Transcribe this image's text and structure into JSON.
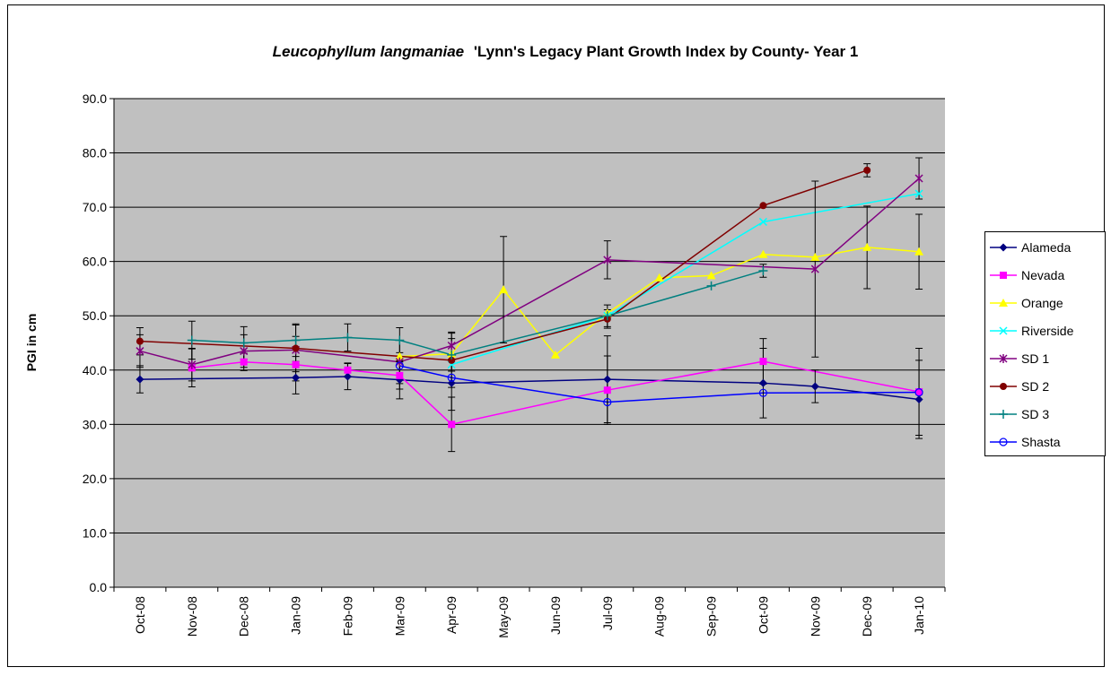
{
  "chart_data": {
    "type": "line",
    "title": [
      "Leucophyllum langmaniae",
      "'Lynn's Legacy Plant Growth Index by County- Year 1"
    ],
    "y_label": "PGI in cm",
    "categories": [
      "Oct-08",
      "Nov-08",
      "Dec-08",
      "Jan-09",
      "Feb-09",
      "Mar-09",
      "Apr-09",
      "May-09",
      "Jun-09",
      "Jul-09",
      "Aug-09",
      "Sep-09",
      "Oct-09",
      "Nov-09",
      "Dec-09",
      "Jan-10"
    ],
    "ylim": [
      0,
      90
    ],
    "yticks": [
      {
        "value": 0,
        "label": "0.0"
      },
      {
        "value": 10,
        "label": "10.0"
      },
      {
        "value": 20,
        "label": "20.0"
      },
      {
        "value": 30,
        "label": "30.0"
      },
      {
        "value": 40,
        "label": "40.0"
      },
      {
        "value": 50,
        "label": "50.0"
      },
      {
        "value": 60,
        "label": "60.0"
      },
      {
        "value": 70,
        "label": "70.0"
      },
      {
        "value": 80,
        "label": "80.0"
      },
      {
        "value": 90,
        "label": "90.0"
      }
    ],
    "grid": true,
    "legend": "right",
    "series": [
      {
        "name": "Alameda",
        "color": "#000080",
        "marker": "diamond",
        "values": [
          38.3,
          null,
          null,
          38.6,
          38.8,
          38.2,
          37.6,
          null,
          null,
          38.3,
          null,
          null,
          37.6,
          37.0,
          null,
          34.6
        ],
        "errors": [
          2.5,
          null,
          null,
          3.0,
          2.4,
          3.5,
          5.0,
          null,
          null,
          8.0,
          null,
          null,
          6.4,
          3.0,
          null,
          7.2
        ]
      },
      {
        "name": "Nevada",
        "color": "#ff00ff",
        "marker": "square",
        "values": [
          null,
          40.4,
          41.5,
          41.0,
          40.0,
          39.0,
          30.0,
          null,
          null,
          36.3,
          null,
          null,
          41.6,
          null,
          null,
          36.0
        ],
        "errors": [
          null,
          3.5,
          1.6,
          3.0,
          1.3,
          2.5,
          5.0,
          null,
          null,
          6.3,
          null,
          null,
          4.2,
          null,
          null,
          8.0
        ]
      },
      {
        "name": "Orange",
        "color": "#ffff00",
        "marker": "triangle",
        "values": [
          null,
          null,
          null,
          null,
          null,
          42.5,
          43.0,
          54.8,
          42.8,
          50.5,
          57.0,
          57.4,
          61.3,
          60.8,
          62.6,
          61.8
        ],
        "errors": [
          null,
          null,
          null,
          null,
          null,
          null,
          null,
          9.8,
          null,
          null,
          null,
          null,
          null,
          null,
          7.6,
          6.9
        ]
      },
      {
        "name": "Riverside",
        "color": "#00ffff",
        "marker": "x",
        "values": [
          null,
          null,
          null,
          null,
          null,
          null,
          41.0,
          null,
          null,
          50.0,
          null,
          null,
          67.3,
          null,
          null,
          72.5
        ],
        "errors": [
          null,
          null,
          null,
          null,
          null,
          null,
          null,
          null,
          null,
          null,
          null,
          null,
          null,
          null,
          null,
          null
        ]
      },
      {
        "name": "SD 1",
        "color": "#800080",
        "marker": "star",
        "values": [
          43.5,
          41.0,
          43.5,
          43.7,
          null,
          41.5,
          44.5,
          null,
          null,
          60.3,
          null,
          null,
          null,
          58.6,
          null,
          75.3
        ],
        "errors": [
          3.0,
          3.0,
          3.0,
          2.5,
          null,
          4.0,
          2.5,
          null,
          null,
          3.5,
          null,
          null,
          null,
          16.2,
          null,
          3.8
        ]
      },
      {
        "name": "SD 2",
        "color": "#800000",
        "marker": "circle",
        "values": [
          45.3,
          null,
          null,
          44.0,
          null,
          null,
          41.8,
          null,
          null,
          49.4,
          null,
          null,
          70.3,
          null,
          76.8,
          null
        ],
        "errors": [
          2.5,
          null,
          null,
          4.3,
          null,
          null,
          5.0,
          null,
          null,
          1.7,
          null,
          null,
          null,
          null,
          1.2,
          null
        ]
      },
      {
        "name": "SD 3",
        "color": "#008080",
        "marker": "plus",
        "values": [
          null,
          45.5,
          45.0,
          45.5,
          46.0,
          45.5,
          42.8,
          null,
          null,
          50.0,
          null,
          55.5,
          58.3,
          null,
          null,
          null
        ],
        "errors": [
          null,
          3.5,
          3.0,
          3.0,
          2.5,
          2.3,
          3.0,
          null,
          null,
          2.0,
          null,
          null,
          1.2,
          null,
          null,
          null
        ]
      },
      {
        "name": "Shasta",
        "color": "#0000ff",
        "marker": "open-circle",
        "values": [
          null,
          null,
          null,
          null,
          null,
          40.8,
          38.6,
          null,
          null,
          34.1,
          null,
          null,
          35.8,
          null,
          null,
          35.9
        ],
        "errors": [
          null,
          null,
          null,
          null,
          null,
          null,
          null,
          null,
          null,
          null,
          null,
          null,
          null,
          null,
          null,
          null
        ]
      }
    ]
  }
}
